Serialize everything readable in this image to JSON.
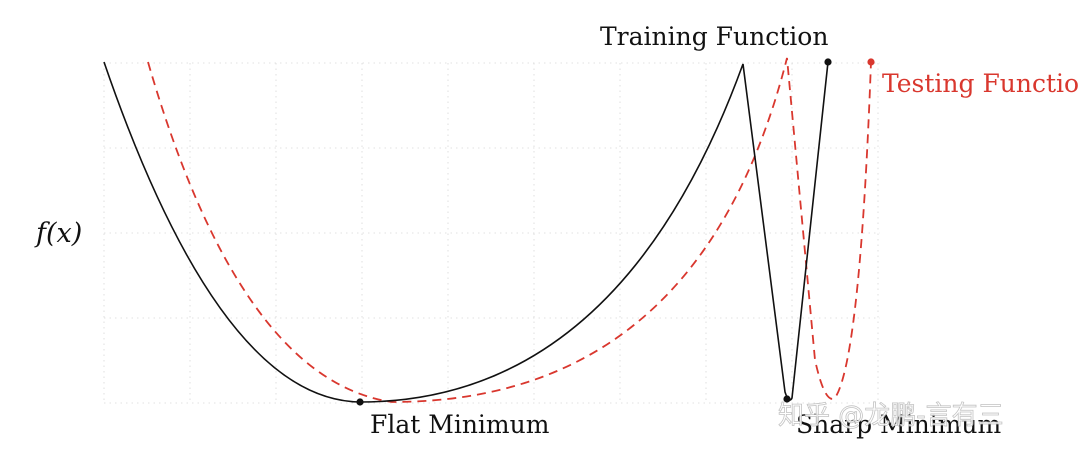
{
  "labels": {
    "y_axis": "f(x)",
    "training": "Training Function",
    "testing": "Testing Function",
    "flat_min": "Flat Minimum",
    "sharp_min": "Sharp Minimum",
    "watermark": "知乎 @龙鹏-言有三"
  },
  "colors": {
    "training": "#111111",
    "testing": "#d9372e",
    "grid": "#d8d8d8"
  }
}
